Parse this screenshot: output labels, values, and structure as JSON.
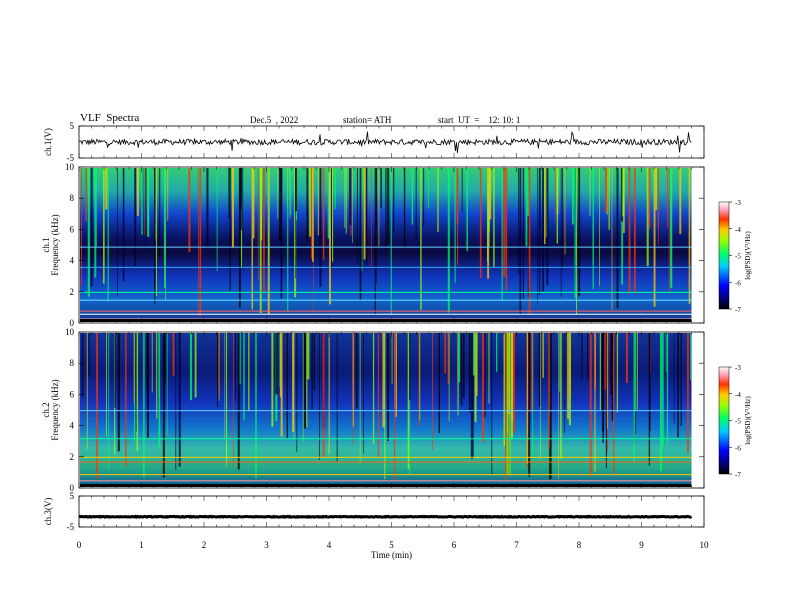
{
  "header": {
    "title": "VLF  Spectra",
    "date": "Dec.5  , 2022",
    "station": "station= ATH",
    "start_ut": "start  UT  =    12: 10: 1"
  },
  "chart_data": [
    {
      "type": "line",
      "panel": "ch1-waveform",
      "ylabel": "ch.1(V)",
      "yticks": [
        "5",
        "-5"
      ],
      "ylim": [
        -5,
        5
      ],
      "mean_value": 0,
      "description_values": "noisy waveform around 0 V with spikes"
    },
    {
      "type": "heatmap",
      "panel": "ch1-spectrogram",
      "ylabel": "ch.1\nFrequency (kHz)",
      "ylabel_lines": [
        "ch.1",
        "Frequency (kHz)"
      ],
      "yticks": [
        "0",
        "2",
        "4",
        "6",
        "8",
        "10"
      ],
      "ylim": [
        0,
        10
      ],
      "colorbar": {
        "label": "log(PSD)(V²/Hz)",
        "ticks": [
          "-3",
          "-4",
          "-5",
          "-6",
          "-7"
        ],
        "range": [
          -7,
          -3
        ]
      }
    },
    {
      "type": "heatmap",
      "panel": "ch2-spectrogram",
      "ylabel": "ch.2\nFrequency (kHz)",
      "ylabel_lines": [
        "ch.2",
        "Frequency (kHz)"
      ],
      "yticks": [
        "0",
        "2",
        "4",
        "6",
        "8",
        "10"
      ],
      "ylim": [
        0,
        10
      ],
      "colorbar": {
        "label": "log(PSD)(V²/Hz)",
        "ticks": [
          "-3",
          "-4",
          "-5",
          "-6",
          "-7"
        ],
        "range": [
          -7,
          -3
        ]
      }
    },
    {
      "type": "line",
      "panel": "ch3-waveform",
      "ylabel": "ch.3(V)",
      "yticks": [
        "5",
        "-5"
      ],
      "ylim": [
        -5,
        5
      ],
      "mean_value": -1.7
    }
  ],
  "xaxis": {
    "label": "Time  (min)",
    "ticks": [
      "0",
      "1",
      "2",
      "3",
      "4",
      "5",
      "6",
      "7",
      "8",
      "9",
      "10"
    ],
    "range": [
      0,
      10
    ],
    "data_end": 9.8
  }
}
